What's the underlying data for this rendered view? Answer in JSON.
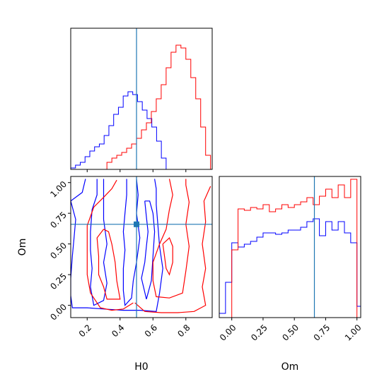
{
  "colors": {
    "blue": "#0000ff",
    "red": "#ff0000",
    "truth": "#1f77b4"
  },
  "chart_data": [
    {
      "panel": "H0-hist",
      "type": "histogram",
      "xlim": [
        0.1,
        0.96
      ],
      "ylim": [
        0,
        1
      ],
      "truth_x": 0.5,
      "series": [
        {
          "color": "#0000ff",
          "edges": [
            0.1,
            0.129,
            0.158,
            0.187,
            0.216,
            0.245,
            0.274,
            0.303,
            0.332,
            0.361,
            0.39,
            0.419,
            0.448,
            0.477,
            0.506,
            0.535,
            0.564,
            0.593,
            0.622,
            0.651,
            0.68
          ],
          "values": [
            0.01,
            0.03,
            0.05,
            0.09,
            0.13,
            0.16,
            0.18,
            0.24,
            0.31,
            0.39,
            0.44,
            0.52,
            0.55,
            0.53,
            0.48,
            0.42,
            0.36,
            0.3,
            0.2,
            0.08
          ]
        },
        {
          "color": "#ff0000",
          "edges": [
            0.32,
            0.35,
            0.38,
            0.41,
            0.44,
            0.47,
            0.5,
            0.53,
            0.56,
            0.59,
            0.62,
            0.65,
            0.68,
            0.71,
            0.74,
            0.77,
            0.8,
            0.83,
            0.86,
            0.89,
            0.92,
            0.95
          ],
          "values": [
            0.05,
            0.08,
            0.1,
            0.12,
            0.15,
            0.18,
            0.22,
            0.28,
            0.33,
            0.41,
            0.5,
            0.6,
            0.72,
            0.83,
            0.88,
            0.86,
            0.78,
            0.65,
            0.5,
            0.3,
            0.1
          ]
        }
      ]
    },
    {
      "panel": "H0-Om-contour",
      "type": "contour",
      "xlim": [
        0.1,
        0.96
      ],
      "ylim": [
        -0.1,
        1.05
      ],
      "truth": [
        0.5,
        0.66
      ],
      "xlabel": "H0",
      "ylabel": "Om",
      "xticks": [
        0.2,
        0.4,
        0.6,
        0.8
      ],
      "xtick_labels": [
        "0.2",
        "0.4",
        "0.6",
        "0.8"
      ],
      "yticks": [
        0.0,
        0.25,
        0.5,
        0.75,
        1.0
      ],
      "ytick_labels": [
        "0.00",
        "0.25",
        "0.50",
        "0.75",
        "1.00"
      ],
      "contours": [
        {
          "color": "#0000ff",
          "points": [
            [
              0.19,
              1.03
            ],
            [
              0.17,
              0.92
            ],
            [
              0.1,
              0.85
            ],
            [
              0.13,
              0.7
            ],
            [
              0.12,
              0.55
            ],
            [
              0.11,
              0.4
            ],
            [
              0.1,
              0.22
            ],
            [
              0.1,
              0.08
            ],
            [
              0.11,
              -0.02
            ],
            [
              0.2,
              -0.02
            ],
            [
              0.3,
              -0.03
            ],
            [
              0.42,
              -0.04
            ],
            [
              0.52,
              -0.04
            ],
            [
              0.62,
              -0.05
            ],
            [
              0.64,
              0.1
            ],
            [
              0.66,
              0.3
            ],
            [
              0.64,
              0.48
            ],
            [
              0.63,
              0.65
            ],
            [
              0.62,
              0.82
            ],
            [
              0.62,
              0.95
            ],
            [
              0.61,
              1.03
            ]
          ]
        },
        {
          "color": "#0000ff",
          "points": [
            [
              0.26,
              1.03
            ],
            [
              0.26,
              0.9
            ],
            [
              0.23,
              0.78
            ],
            [
              0.22,
              0.6
            ],
            [
              0.22,
              0.45
            ],
            [
              0.23,
              0.3
            ],
            [
              0.22,
              0.15
            ],
            [
              0.24,
              0.0
            ],
            [
              0.3,
              0.04
            ],
            [
              0.32,
              0.18
            ],
            [
              0.3,
              0.35
            ],
            [
              0.32,
              0.5
            ],
            [
              0.3,
              0.7
            ],
            [
              0.3,
              0.85
            ],
            [
              0.3,
              1.03
            ]
          ]
        },
        {
          "color": "#0000ff",
          "points": [
            [
              0.44,
              1.03
            ],
            [
              0.44,
              0.9
            ],
            [
              0.43,
              0.75
            ],
            [
              0.42,
              0.6
            ],
            [
              0.43,
              0.45
            ],
            [
              0.42,
              0.3
            ],
            [
              0.42,
              0.12
            ],
            [
              0.43,
              0.0
            ],
            [
              0.47,
              0.06
            ],
            [
              0.48,
              0.2
            ],
            [
              0.5,
              0.35
            ],
            [
              0.52,
              0.55
            ],
            [
              0.5,
              0.75
            ],
            [
              0.51,
              0.9
            ],
            [
              0.5,
              1.03
            ]
          ]
        },
        {
          "color": "#0000ff",
          "points": [
            [
              0.55,
              0.85
            ],
            [
              0.56,
              0.72
            ],
            [
              0.57,
              0.6
            ],
            [
              0.56,
              0.48
            ],
            [
              0.55,
              0.35
            ],
            [
              0.53,
              0.22
            ],
            [
              0.56,
              0.05
            ],
            [
              0.59,
              0.2
            ],
            [
              0.6,
              0.4
            ],
            [
              0.61,
              0.6
            ],
            [
              0.6,
              0.75
            ],
            [
              0.58,
              0.85
            ],
            [
              0.55,
              0.85
            ]
          ]
        },
        {
          "color": "#ff0000",
          "points": [
            [
              0.38,
              1.02
            ],
            [
              0.35,
              0.95
            ],
            [
              0.3,
              0.88
            ],
            [
              0.24,
              0.8
            ],
            [
              0.2,
              0.65
            ],
            [
              0.2,
              0.45
            ],
            [
              0.2,
              0.25
            ],
            [
              0.22,
              0.1
            ],
            [
              0.28,
              -0.02
            ],
            [
              0.35,
              -0.04
            ],
            [
              0.42,
              -0.03
            ],
            [
              0.48,
              0.02
            ]
          ]
        },
        {
          "color": "#ff0000",
          "points": [
            [
              0.49,
              0.02
            ],
            [
              0.55,
              -0.05
            ],
            [
              0.65,
              -0.06
            ],
            [
              0.75,
              -0.06
            ],
            [
              0.85,
              -0.05
            ],
            [
              0.92,
              0.0
            ],
            [
              0.9,
              0.15
            ],
            [
              0.92,
              0.3
            ],
            [
              0.9,
              0.5
            ],
            [
              0.92,
              0.68
            ],
            [
              0.91,
              0.85
            ],
            [
              0.95,
              0.97
            ]
          ]
        },
        {
          "color": "#ff0000",
          "points": [
            [
              0.3,
              0.62
            ],
            [
              0.26,
              0.55
            ],
            [
              0.27,
              0.4
            ],
            [
              0.27,
              0.25
            ],
            [
              0.3,
              0.15
            ],
            [
              0.32,
              0.05
            ],
            [
              0.4,
              0.05
            ],
            [
              0.38,
              0.2
            ],
            [
              0.37,
              0.35
            ],
            [
              0.35,
              0.5
            ],
            [
              0.33,
              0.6
            ],
            [
              0.3,
              0.62
            ]
          ]
        },
        {
          "color": "#ff0000",
          "points": [
            [
              0.7,
              1.03
            ],
            [
              0.72,
              0.9
            ],
            [
              0.7,
              0.78
            ],
            [
              0.68,
              0.62
            ],
            [
              0.64,
              0.5
            ],
            [
              0.6,
              0.35
            ],
            [
              0.6,
              0.2
            ],
            [
              0.62,
              0.07
            ],
            [
              0.7,
              0.06
            ],
            [
              0.78,
              0.1
            ],
            [
              0.8,
              0.28
            ],
            [
              0.82,
              0.48
            ],
            [
              0.8,
              0.66
            ],
            [
              0.82,
              0.84
            ],
            [
              0.8,
              0.98
            ],
            [
              0.8,
              1.03
            ]
          ]
        },
        {
          "color": "#ff0000",
          "points": [
            [
              0.66,
              0.5
            ],
            [
              0.7,
              0.55
            ],
            [
              0.72,
              0.48
            ],
            [
              0.72,
              0.35
            ],
            [
              0.7,
              0.25
            ],
            [
              0.68,
              0.3
            ],
            [
              0.67,
              0.4
            ],
            [
              0.66,
              0.5
            ]
          ]
        }
      ]
    },
    {
      "panel": "Om-hist",
      "type": "histogram",
      "xlim": [
        -0.1,
        1.03
      ],
      "ylim": [
        0,
        1
      ],
      "truth_x": 0.66,
      "xlabel": "Om",
      "xticks": [
        0.0,
        0.25,
        0.5,
        0.75,
        1.0
      ],
      "xtick_labels": [
        "0.00",
        "0.25",
        "0.50",
        "0.75",
        "1.00"
      ],
      "series": [
        {
          "color": "#0000ff",
          "edges": [
            -0.1,
            -0.05,
            0.0,
            0.05,
            0.1,
            0.15,
            0.2,
            0.25,
            0.3,
            0.35,
            0.4,
            0.45,
            0.5,
            0.55,
            0.6,
            0.65,
            0.7,
            0.75,
            0.8,
            0.85,
            0.9,
            0.95,
            1.0,
            1.03
          ],
          "values": [
            0.03,
            0.25,
            0.53,
            0.5,
            0.52,
            0.54,
            0.57,
            0.6,
            0.6,
            0.59,
            0.6,
            0.62,
            0.62,
            0.64,
            0.68,
            0.7,
            0.58,
            0.68,
            0.62,
            0.68,
            0.6,
            0.53,
            0.08
          ]
        },
        {
          "color": "#ff0000",
          "edges": [
            0.0,
            0.05,
            0.1,
            0.15,
            0.2,
            0.25,
            0.3,
            0.35,
            0.4,
            0.45,
            0.5,
            0.55,
            0.6,
            0.65,
            0.7,
            0.75,
            0.8,
            0.85,
            0.9,
            0.95,
            1.0
          ],
          "values": [
            0.48,
            0.77,
            0.76,
            0.78,
            0.77,
            0.8,
            0.75,
            0.77,
            0.8,
            0.78,
            0.8,
            0.82,
            0.85,
            0.8,
            0.86,
            0.91,
            0.85,
            0.94,
            0.85,
            0.98
          ]
        }
      ]
    }
  ]
}
